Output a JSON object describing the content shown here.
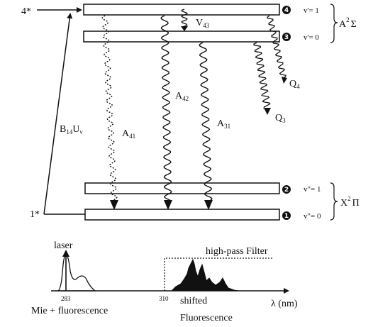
{
  "levels": {
    "upper_left_label": "4*",
    "lower_left_label": "1*",
    "circle_4": "4",
    "circle_3": "3",
    "circle_2": "2",
    "circle_1": "1",
    "v4": "v'= 1",
    "v3": "v'= 0",
    "v2": "v\"= 1",
    "v1": "v\"= 0",
    "upper_state_main": "A",
    "upper_state_sup": "2",
    "upper_state_sym": "Σ",
    "lower_state_main": "X",
    "lower_state_sup": "2",
    "lower_state_sym": "Π"
  },
  "transitions": {
    "absorption_main": "B",
    "absorption_sub": "14",
    "absorption_tail": "U",
    "absorption_tail_sub": "ν",
    "a41_main": "A",
    "a41_sub": "41",
    "a42_main": "A",
    "a42_sub": "42",
    "a31_main": "A",
    "a31_sub": "31",
    "v43_main": "V",
    "v43_sub": "43",
    "q4_main": "Q",
    "q4_sub": "4",
    "q3_main": "Q",
    "q3_sub": "3"
  },
  "spectrum": {
    "laser_label": "laser",
    "laser_tick": "283",
    "filter_tick": "310",
    "filter_label": "high-pass Filter",
    "mie_label": "Mie + fluorescence",
    "shifted_label_1": "shifted",
    "shifted_label_2": "Fluorescence",
    "axis_label": "λ (nm)"
  }
}
